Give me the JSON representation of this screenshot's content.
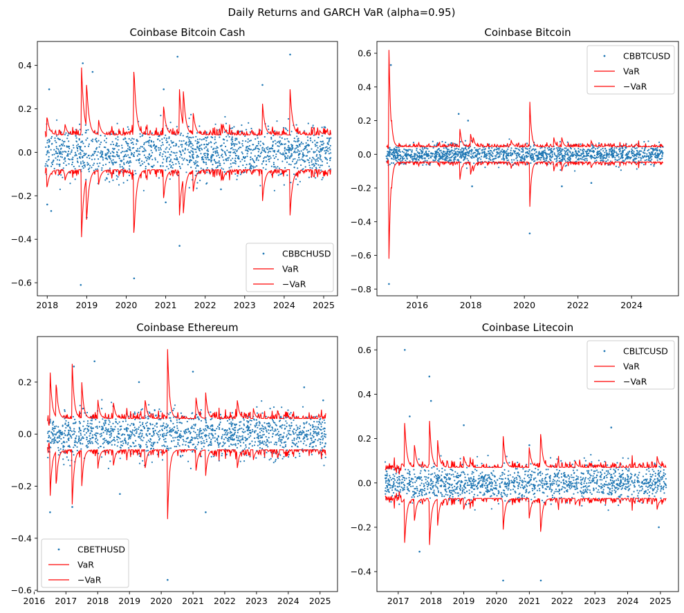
{
  "figure_title": "Daily Returns and GARCH VaR (alpha=0.95)",
  "colors": {
    "returns": "#1f77b4",
    "var_line": "#ff0000",
    "axes": "#000000"
  },
  "chart_data": [
    {
      "type": "scatter",
      "title": "Coinbase Bitcoin Cash",
      "xlabel": "",
      "ylabel": "",
      "xlim": [
        2017.75,
        2025.35
      ],
      "ylim": [
        -0.66,
        0.51
      ],
      "x_ticks": [
        "2018",
        "2019",
        "2020",
        "2021",
        "2022",
        "2023",
        "2024",
        "2025"
      ],
      "x_tick_values": [
        2018,
        2019,
        2020,
        2021,
        2022,
        2023,
        2024,
        2025
      ],
      "y_ticks": [
        "−0.6",
        "−0.4",
        "−0.2",
        "0.0",
        "0.2",
        "0.4"
      ],
      "y_tick_values": [
        -0.6,
        -0.4,
        -0.2,
        0.0,
        0.2,
        0.4
      ],
      "legend": {
        "position": "lower-right",
        "entries": [
          "CBBCHUSD",
          "VaR",
          "−VaR"
        ]
      },
      "x_range": [
        2017.95,
        2025.18
      ],
      "noise_sigma": 0.055,
      "var_base": 0.08,
      "var_peaks": [
        [
          2018.0,
          0.16
        ],
        [
          2018.45,
          0.13
        ],
        [
          2018.87,
          0.39
        ],
        [
          2019.0,
          0.31
        ],
        [
          2019.3,
          0.15
        ],
        [
          2020.2,
          0.37
        ],
        [
          2020.95,
          0.21
        ],
        [
          2021.35,
          0.29
        ],
        [
          2021.45,
          0.28
        ],
        [
          2021.7,
          0.18
        ],
        [
          2022.45,
          0.13
        ],
        [
          2023.45,
          0.23
        ],
        [
          2024.15,
          0.29
        ],
        [
          2024.9,
          0.1
        ]
      ],
      "outliers": [
        [
          2018.05,
          0.29
        ],
        [
          2018.9,
          0.41
        ],
        [
          2019.15,
          0.37
        ],
        [
          2020.95,
          0.29
        ],
        [
          2021.3,
          0.44
        ],
        [
          2023.45,
          0.31
        ],
        [
          2024.15,
          0.45
        ],
        [
          2018.85,
          -0.61
        ],
        [
          2020.2,
          -0.58
        ],
        [
          2021.35,
          -0.43
        ],
        [
          2018.0,
          -0.24
        ],
        [
          2018.1,
          -0.27
        ],
        [
          2019.0,
          -0.3
        ],
        [
          2021.0,
          -0.23
        ],
        [
          2022.4,
          -0.17
        ]
      ],
      "series": [
        {
          "name": "CBBCHUSD",
          "kind": "scatter"
        },
        {
          "name": "VaR",
          "kind": "line"
        },
        {
          "name": "−VaR",
          "kind": "line"
        }
      ]
    },
    {
      "type": "scatter",
      "title": "Coinbase Bitcoin",
      "xlabel": "",
      "ylabel": "",
      "xlim": [
        2014.5,
        2025.75
      ],
      "ylim": [
        -0.84,
        0.67
      ],
      "x_ticks": [
        "2016",
        "2018",
        "2020",
        "2022",
        "2024"
      ],
      "x_tick_values": [
        2016,
        2018,
        2020,
        2022,
        2024
      ],
      "y_ticks": [
        "−0.8",
        "−0.6",
        "−0.4",
        "−0.2",
        "0.0",
        "0.2",
        "0.4",
        "0.6"
      ],
      "y_tick_values": [
        -0.8,
        -0.6,
        -0.4,
        -0.2,
        0.0,
        0.2,
        0.4,
        0.6
      ],
      "legend": {
        "position": "upper-right",
        "entries": [
          "CBBTCUSD",
          "VaR",
          "−VaR"
        ]
      },
      "x_range": [
        2014.85,
        2025.18
      ],
      "noise_sigma": 0.027,
      "var_base": 0.045,
      "var_peaks": [
        [
          2014.95,
          0.62
        ],
        [
          2015.05,
          0.2
        ],
        [
          2017.6,
          0.15
        ],
        [
          2018.0,
          0.12
        ],
        [
          2018.1,
          0.1
        ],
        [
          2019.5,
          0.09
        ],
        [
          2020.2,
          0.33
        ],
        [
          2021.1,
          0.1
        ],
        [
          2021.4,
          0.1
        ],
        [
          2022.5,
          0.08
        ]
      ],
      "outliers": [
        [
          2014.95,
          -0.77
        ],
        [
          2015.02,
          0.53
        ],
        [
          2020.2,
          -0.47
        ],
        [
          2017.55,
          0.24
        ],
        [
          2017.9,
          0.2
        ],
        [
          2018.05,
          -0.19
        ],
        [
          2021.4,
          -0.19
        ],
        [
          2022.5,
          -0.17
        ]
      ],
      "series": [
        {
          "name": "CBBTCUSD",
          "kind": "scatter"
        },
        {
          "name": "VaR",
          "kind": "line"
        },
        {
          "name": "−VaR",
          "kind": "line"
        }
      ]
    },
    {
      "type": "scatter",
      "title": "Coinbase Ethereum",
      "xlabel": "",
      "ylabel": "",
      "xlim": [
        2016.1,
        2025.55
      ],
      "ylim": [
        -0.605,
        0.375
      ],
      "x_ticks": [
        "2016",
        "2017",
        "2018",
        "2019",
        "2020",
        "2021",
        "2022",
        "2023",
        "2024",
        "2025"
      ],
      "x_tick_values": [
        2016,
        2017,
        2018,
        2019,
        2020,
        2021,
        2022,
        2023,
        2024,
        2025
      ],
      "y_ticks": [
        "−0.6",
        "−0.4",
        "−0.2",
        "0.0",
        "0.2"
      ],
      "y_tick_values": [
        -0.6,
        -0.4,
        -0.2,
        0.0,
        0.2
      ],
      "legend": {
        "position": "lower-left",
        "entries": [
          "CBETHUSD",
          "VaR",
          "−VaR"
        ]
      },
      "x_range": [
        2016.42,
        2025.18
      ],
      "noise_sigma": 0.042,
      "var_base": 0.06,
      "var_peaks": [
        [
          2016.5,
          0.25
        ],
        [
          2016.7,
          0.19
        ],
        [
          2017.2,
          0.27
        ],
        [
          2017.5,
          0.2
        ],
        [
          2018.0,
          0.14
        ],
        [
          2018.5,
          0.12
        ],
        [
          2019.5,
          0.13
        ],
        [
          2020.2,
          0.33
        ],
        [
          2021.1,
          0.14
        ],
        [
          2021.4,
          0.16
        ],
        [
          2022.4,
          0.13
        ],
        [
          2022.9,
          0.1
        ]
      ],
      "outliers": [
        [
          2016.5,
          -0.3
        ],
        [
          2017.2,
          -0.28
        ],
        [
          2017.25,
          0.26
        ],
        [
          2017.9,
          0.28
        ],
        [
          2020.2,
          -0.56
        ],
        [
          2021.0,
          0.24
        ],
        [
          2021.4,
          -0.3
        ],
        [
          2019.3,
          0.2
        ],
        [
          2018.7,
          -0.23
        ],
        [
          2024.5,
          0.18
        ],
        [
          2025.1,
          0.13
        ]
      ],
      "series": [
        {
          "name": "CBETHUSD",
          "kind": "scatter"
        },
        {
          "name": "VaR",
          "kind": "line"
        },
        {
          "name": "−VaR",
          "kind": "line"
        }
      ]
    },
    {
      "type": "scatter",
      "title": "Coinbase Litecoin",
      "xlabel": "",
      "ylabel": "",
      "xlim": [
        2016.35,
        2025.55
      ],
      "ylim": [
        -0.49,
        0.66
      ],
      "x_ticks": [
        "2017",
        "2018",
        "2019",
        "2020",
        "2021",
        "2022",
        "2023",
        "2024",
        "2025"
      ],
      "x_tick_values": [
        2017,
        2018,
        2019,
        2020,
        2021,
        2022,
        2023,
        2024,
        2025
      ],
      "y_ticks": [
        "−0.4",
        "−0.2",
        "0.0",
        "0.2",
        "0.4",
        "0.6"
      ],
      "y_tick_values": [
        -0.4,
        -0.2,
        0.0,
        0.2,
        0.4,
        0.6
      ],
      "legend": {
        "position": "upper-right",
        "entries": [
          "CBLTCUSD",
          "VaR",
          "−VaR"
        ]
      },
      "x_range": [
        2016.6,
        2025.18
      ],
      "noise_sigma": 0.04,
      "var_base": 0.07,
      "var_peaks": [
        [
          2017.2,
          0.27
        ],
        [
          2017.5,
          0.17
        ],
        [
          2017.95,
          0.3
        ],
        [
          2018.2,
          0.2
        ],
        [
          2019.0,
          0.12
        ],
        [
          2020.2,
          0.22
        ],
        [
          2021.0,
          0.16
        ],
        [
          2021.35,
          0.22
        ],
        [
          2022.4,
          0.1
        ],
        [
          2024.9,
          0.12
        ]
      ],
      "outliers": [
        [
          2017.2,
          0.6
        ],
        [
          2017.95,
          0.48
        ],
        [
          2018.0,
          0.37
        ],
        [
          2017.35,
          0.3
        ],
        [
          2020.2,
          -0.44
        ],
        [
          2021.35,
          -0.44
        ],
        [
          2017.65,
          -0.31
        ],
        [
          2019.0,
          0.26
        ],
        [
          2021.0,
          0.17
        ],
        [
          2023.5,
          0.25
        ],
        [
          2024.95,
          -0.2
        ]
      ],
      "series": [
        {
          "name": "CBLTCUSD",
          "kind": "scatter"
        },
        {
          "name": "VaR",
          "kind": "line"
        },
        {
          "name": "−VaR",
          "kind": "line"
        }
      ]
    }
  ]
}
